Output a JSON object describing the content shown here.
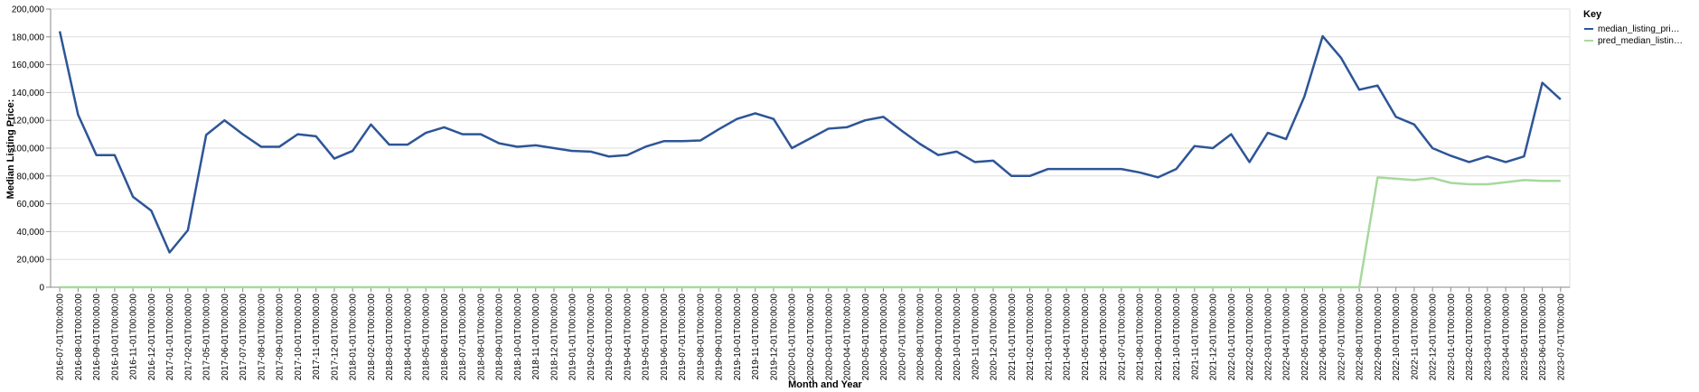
{
  "chart_data": {
    "type": "line",
    "xlabel": "Month and Year",
    "ylabel": "Median Listing Price:",
    "ylim": [
      0,
      200000
    ],
    "yticks": [
      "0",
      "20,000",
      "40,000",
      "60,000",
      "80,000",
      "100,000",
      "120,000",
      "140,000",
      "160,000",
      "180,000",
      "200,000"
    ],
    "grid": true,
    "legend": {
      "title": "Key",
      "position": "top-right"
    },
    "colors": {
      "median": "#2d5597",
      "pred": "#a7d99c"
    },
    "x": [
      "2016-07-01T00:00:00",
      "2016-08-01T00:00:00",
      "2016-09-01T00:00:00",
      "2016-10-01T00:00:00",
      "2016-11-01T00:00:00",
      "2016-12-01T00:00:00",
      "2017-01-01T00:00:00",
      "2017-02-01T00:00:00",
      "2017-05-01T00:00:00",
      "2017-06-01T00:00:00",
      "2017-07-01T00:00:00",
      "2017-08-01T00:00:00",
      "2017-09-01T00:00:00",
      "2017-10-01T00:00:00",
      "2017-11-01T00:00:00",
      "2017-12-01T00:00:00",
      "2018-01-01T00:00:00",
      "2018-02-01T00:00:00",
      "2018-03-01T00:00:00",
      "2018-04-01T00:00:00",
      "2018-05-01T00:00:00",
      "2018-06-01T00:00:00",
      "2018-07-01T00:00:00",
      "2018-08-01T00:00:00",
      "2018-09-01T00:00:00",
      "2018-10-01T00:00:00",
      "2018-11-01T00:00:00",
      "2018-12-01T00:00:00",
      "2019-01-01T00:00:00",
      "2019-02-01T00:00:00",
      "2019-03-01T00:00:00",
      "2019-04-01T00:00:00",
      "2019-05-01T00:00:00",
      "2019-06-01T00:00:00",
      "2019-07-01T00:00:00",
      "2019-08-01T00:00:00",
      "2019-09-01T00:00:00",
      "2019-10-01T00:00:00",
      "2019-11-01T00:00:00",
      "2019-12-01T00:00:00",
      "2020-01-01T00:00:00",
      "2020-02-01T00:00:00",
      "2020-03-01T00:00:00",
      "2020-04-01T00:00:00",
      "2020-05-01T00:00:00",
      "2020-06-01T00:00:00",
      "2020-07-01T00:00:00",
      "2020-08-01T00:00:00",
      "2020-09-01T00:00:00",
      "2020-10-01T00:00:00",
      "2020-11-01T00:00:00",
      "2020-12-01T00:00:00",
      "2021-01-01T00:00:00",
      "2021-02-01T00:00:00",
      "2021-03-01T00:00:00",
      "2021-04-01T00:00:00",
      "2021-05-01T00:00:00",
      "2021-06-01T00:00:00",
      "2021-07-01T00:00:00",
      "2021-08-01T00:00:00",
      "2021-09-01T00:00:00",
      "2021-10-01T00:00:00",
      "2021-11-01T00:00:00",
      "2021-12-01T00:00:00",
      "2022-01-01T00:00:00",
      "2022-02-01T00:00:00",
      "2022-03-01T00:00:00",
      "2022-04-01T00:00:00",
      "2022-05-01T00:00:00",
      "2022-06-01T00:00:00",
      "2022-07-01T00:00:00",
      "2022-08-01T00:00:00",
      "2022-09-01T00:00:00",
      "2022-10-01T00:00:00",
      "2022-11-01T00:00:00",
      "2022-12-01T00:00:00",
      "2023-01-01T00:00:00",
      "2023-02-01T00:00:00",
      "2023-03-01T00:00:00",
      "2023-04-01T00:00:00",
      "2023-05-01T00:00:00",
      "2023-06-01T00:00:00",
      "2023-07-01T00:00:00"
    ],
    "series": [
      {
        "name": "median_listing_pri…",
        "key": "median",
        "values": [
          184000,
          124000,
          95000,
          95000,
          65000,
          55000,
          25000,
          41000,
          109500,
          120000,
          110000,
          101000,
          101000,
          110000,
          108500,
          92500,
          98000,
          117000,
          102500,
          102500,
          111000,
          115000,
          110000,
          110000,
          103500,
          101000,
          102000,
          100000,
          98000,
          97500,
          94000,
          95000,
          101000,
          105000,
          105000,
          105500,
          113500,
          121000,
          125000,
          121000,
          100000,
          107000,
          114000,
          115000,
          120000,
          122500,
          112500,
          103000,
          95000,
          97500,
          90000,
          91000,
          80000,
          80000,
          85000,
          85000,
          85000,
          85000,
          85000,
          82500,
          79000,
          85000,
          101500,
          100000,
          110000,
          90000,
          111000,
          106500,
          137000,
          180500,
          165000,
          142000,
          145000,
          122500,
          117000,
          100000,
          94500,
          90000,
          94000,
          90000,
          94000,
          147000,
          135000
        ]
      },
      {
        "name": "pred_median_listin…",
        "key": "pred",
        "values": [
          0,
          0,
          0,
          0,
          0,
          0,
          0,
          0,
          0,
          0,
          0,
          0,
          0,
          0,
          0,
          0,
          0,
          0,
          0,
          0,
          0,
          0,
          0,
          0,
          0,
          0,
          0,
          0,
          0,
          0,
          0,
          0,
          0,
          0,
          0,
          0,
          0,
          0,
          0,
          0,
          0,
          0,
          0,
          0,
          0,
          0,
          0,
          0,
          0,
          0,
          0,
          0,
          0,
          0,
          0,
          0,
          0,
          0,
          0,
          0,
          0,
          0,
          0,
          0,
          0,
          0,
          0,
          0,
          0,
          0,
          0,
          0,
          79000,
          78000,
          77000,
          78500,
          75000,
          74000,
          74000,
          75500,
          77000,
          76500,
          76500
        ]
      }
    ]
  }
}
